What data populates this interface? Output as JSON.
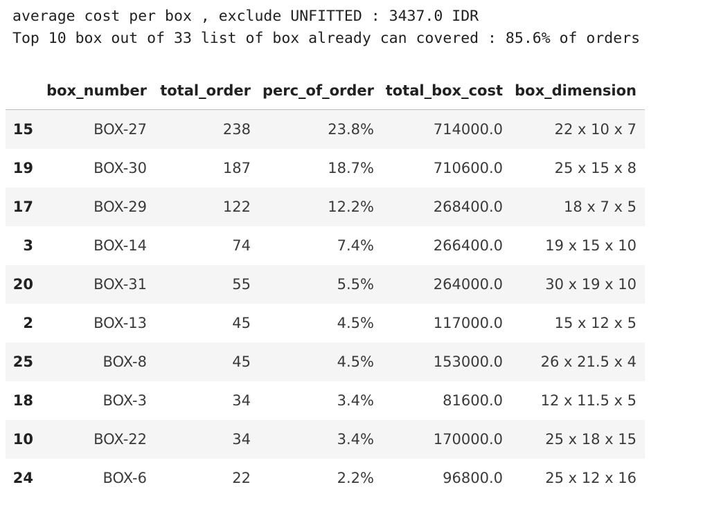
{
  "output": {
    "line1": "average cost per box , exclude UNFITTED : 3437.0 IDR",
    "line2": "Top 10 box out of 33 list of box already can covered : 85.6% of orders"
  },
  "table": {
    "columns": [
      "",
      "box_number",
      "total_order",
      "perc_of_order",
      "total_box_cost",
      "box_dimension"
    ],
    "rows": [
      {
        "index": "15",
        "box_number": "BOX-27",
        "total_order": "238",
        "perc_of_order": "23.8%",
        "total_box_cost": "714000.0",
        "box_dimension": "22 x 10 x 7"
      },
      {
        "index": "19",
        "box_number": "BOX-30",
        "total_order": "187",
        "perc_of_order": "18.7%",
        "total_box_cost": "710600.0",
        "box_dimension": "25 x 15 x 8"
      },
      {
        "index": "17",
        "box_number": "BOX-29",
        "total_order": "122",
        "perc_of_order": "12.2%",
        "total_box_cost": "268400.0",
        "box_dimension": "18 x 7 x 5"
      },
      {
        "index": "3",
        "box_number": "BOX-14",
        "total_order": "74",
        "perc_of_order": "7.4%",
        "total_box_cost": "266400.0",
        "box_dimension": "19 x 15 x 10"
      },
      {
        "index": "20",
        "box_number": "BOX-31",
        "total_order": "55",
        "perc_of_order": "5.5%",
        "total_box_cost": "264000.0",
        "box_dimension": "30 x 19 x 10"
      },
      {
        "index": "2",
        "box_number": "BOX-13",
        "total_order": "45",
        "perc_of_order": "4.5%",
        "total_box_cost": "117000.0",
        "box_dimension": "15 x 12 x 5"
      },
      {
        "index": "25",
        "box_number": "BOX-8",
        "total_order": "45",
        "perc_of_order": "4.5%",
        "total_box_cost": "153000.0",
        "box_dimension": "26 x 21.5 x 4"
      },
      {
        "index": "18",
        "box_number": "BOX-3",
        "total_order": "34",
        "perc_of_order": "3.4%",
        "total_box_cost": "81600.0",
        "box_dimension": "12 x 11.5 x 5"
      },
      {
        "index": "10",
        "box_number": "BOX-22",
        "total_order": "34",
        "perc_of_order": "3.4%",
        "total_box_cost": "170000.0",
        "box_dimension": "25 x 18 x 15"
      },
      {
        "index": "24",
        "box_number": "BOX-6",
        "total_order": "22",
        "perc_of_order": "2.2%",
        "total_box_cost": "96800.0",
        "box_dimension": "25 x 12 x 16"
      }
    ]
  }
}
